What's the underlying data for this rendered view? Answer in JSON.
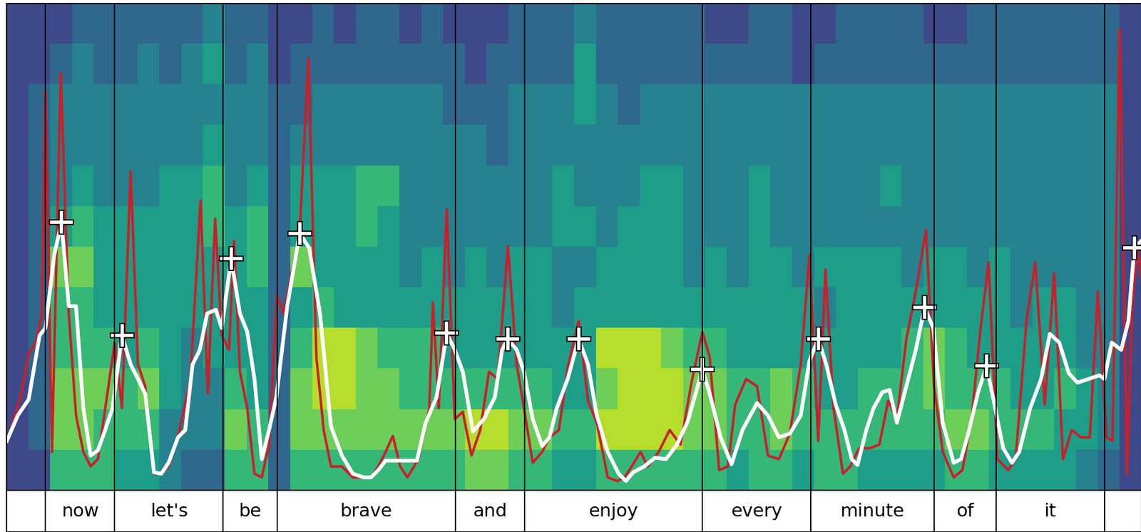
{
  "chart_data": {
    "type": "spectrogram",
    "xlim": [
      0,
      1558
    ],
    "ylim": [
      0,
      668
    ],
    "tick_labels": false,
    "heatmap": {
      "color_range": [
        0,
        9
      ],
      "cells": [
        [
          2,
          2,
          2,
          3,
          3,
          3,
          3,
          3,
          3,
          4,
          3,
          3,
          2,
          2,
          3,
          2,
          3,
          3,
          2,
          3,
          2,
          2,
          2,
          3,
          3,
          3,
          4,
          3,
          3,
          3,
          3,
          3,
          2,
          2,
          3,
          3,
          2,
          2,
          3,
          3,
          3,
          3,
          2,
          2,
          3,
          3,
          3,
          3,
          3,
          3,
          3,
          2
        ],
        [
          2,
          2,
          3,
          4,
          3,
          3,
          4,
          3,
          4,
          5,
          3,
          4,
          2,
          3,
          3,
          3,
          3,
          3,
          3,
          3,
          3,
          2,
          3,
          3,
          3,
          3,
          5,
          3,
          3,
          3,
          3,
          3,
          3,
          3,
          3,
          3,
          2,
          3,
          3,
          3,
          3,
          3,
          3,
          3,
          3,
          3,
          3,
          3,
          3,
          3,
          3,
          2
        ],
        [
          2,
          3,
          4,
          4,
          4,
          4,
          4,
          4,
          4,
          4,
          4,
          4,
          3,
          3,
          4,
          4,
          4,
          4,
          4,
          4,
          3,
          3,
          3,
          4,
          4,
          4,
          5,
          4,
          3,
          4,
          4,
          4,
          4,
          4,
          4,
          4,
          4,
          4,
          4,
          4,
          4,
          4,
          4,
          4,
          4,
          4,
          4,
          4,
          4,
          4,
          4,
          2
        ],
        [
          2,
          3,
          4,
          4,
          4,
          4,
          4,
          4,
          4,
          5,
          4,
          4,
          3,
          4,
          4,
          4,
          4,
          4,
          4,
          4,
          4,
          4,
          3,
          4,
          4,
          4,
          4,
          4,
          4,
          4,
          4,
          4,
          4,
          4,
          4,
          4,
          4,
          4,
          4,
          4,
          4,
          4,
          4,
          4,
          4,
          4,
          4,
          4,
          4,
          4,
          4,
          2
        ],
        [
          2,
          3,
          4,
          5,
          4,
          4,
          4,
          5,
          5,
          6,
          4,
          5,
          3,
          5,
          5,
          5,
          6,
          6,
          4,
          4,
          4,
          4,
          4,
          4,
          4,
          5,
          4,
          4,
          4,
          5,
          5,
          4,
          4,
          4,
          5,
          4,
          4,
          4,
          4,
          4,
          5,
          4,
          4,
          4,
          4,
          4,
          4,
          4,
          4,
          4,
          4,
          2
        ],
        [
          2,
          3,
          5,
          6,
          5,
          5,
          5,
          5,
          5,
          6,
          5,
          6,
          3,
          5,
          5,
          5,
          6,
          5,
          4,
          4,
          4,
          4,
          4,
          4,
          4,
          5,
          5,
          4,
          5,
          5,
          5,
          4,
          4,
          4,
          5,
          4,
          4,
          4,
          4,
          4,
          4,
          4,
          4,
          4,
          4,
          4,
          4,
          4,
          4,
          4,
          4,
          2
        ],
        [
          2,
          3,
          7,
          7,
          5,
          5,
          5,
          5,
          5,
          5,
          5,
          6,
          3,
          7,
          5,
          5,
          5,
          5,
          4,
          5,
          4,
          5,
          4,
          5,
          5,
          4,
          4,
          5,
          5,
          5,
          5,
          4,
          5,
          4,
          5,
          5,
          4,
          5,
          5,
          5,
          5,
          4,
          5,
          5,
          4,
          5,
          4,
          4,
          4,
          4,
          4,
          2
        ],
        [
          2,
          3,
          6,
          6,
          5,
          5,
          5,
          5,
          5,
          5,
          5,
          5,
          3,
          5,
          6,
          5,
          5,
          5,
          5,
          5,
          5,
          5,
          5,
          5,
          5,
          4,
          5,
          5,
          5,
          5,
          5,
          5,
          5,
          5,
          5,
          5,
          5,
          4,
          5,
          5,
          5,
          5,
          5,
          5,
          5,
          5,
          4,
          5,
          5,
          4,
          4,
          2
        ],
        [
          2,
          3,
          6,
          6,
          6,
          5,
          6,
          5,
          4,
          5,
          5,
          5,
          3,
          6,
          8,
          8,
          7,
          6,
          6,
          6,
          5,
          5,
          5,
          5,
          5,
          5,
          5,
          8,
          8,
          8,
          7,
          6,
          6,
          5,
          5,
          5,
          5,
          5,
          5,
          5,
          5,
          6,
          7,
          6,
          5,
          5,
          5,
          5,
          5,
          4,
          4,
          2
        ],
        [
          2,
          3,
          7,
          7,
          7,
          6,
          7,
          5,
          4,
          4,
          6,
          5,
          3,
          7,
          8,
          8,
          7,
          7,
          6,
          6,
          6,
          6,
          6,
          6,
          6,
          5,
          5,
          7,
          8,
          8,
          8,
          7,
          7,
          6,
          6,
          7,
          6,
          5,
          5,
          6,
          6,
          6,
          7,
          6,
          6,
          6,
          5,
          5,
          6,
          5,
          4,
          2
        ],
        [
          2,
          3,
          7,
          7,
          6,
          6,
          6,
          4,
          4,
          4,
          7,
          6,
          3,
          7,
          7,
          7,
          7,
          7,
          7,
          7,
          7,
          8,
          8,
          7,
          7,
          6,
          6,
          8,
          8,
          8,
          8,
          7,
          7,
          6,
          6,
          7,
          6,
          6,
          6,
          6,
          6,
          6,
          6,
          7,
          7,
          6,
          6,
          6,
          5,
          5,
          4,
          2
        ],
        [
          2,
          2,
          6,
          6,
          6,
          5,
          5,
          4,
          3,
          3,
          6,
          6,
          3,
          6,
          6,
          6,
          6,
          6,
          6,
          6,
          6,
          7,
          7,
          6,
          6,
          5,
          5,
          6,
          6,
          6,
          6,
          6,
          6,
          5,
          6,
          6,
          5,
          6,
          6,
          5,
          5,
          5,
          5,
          6,
          6,
          5,
          5,
          5,
          5,
          4,
          3,
          2
        ]
      ]
    },
    "series": [
      {
        "type": "line",
        "color": "#c8202a",
        "line_style": "solid",
        "x": [
          5,
          20,
          30,
          40,
          48,
          53,
          62,
          74,
          85,
          95,
          105,
          115,
          125,
          138,
          148,
          158,
          170,
          180,
          190,
          202,
          212,
          222,
          235,
          252,
          266,
          276,
          286,
          295,
          305,
          312,
          320,
          330,
          340,
          350,
          360,
          371,
          380,
          390,
          402,
          414,
          425,
          435,
          445,
          460,
          475,
          490,
          500,
          510,
          520,
          530,
          540,
          550,
          565,
          580,
          585,
          593,
          604,
          615,
          626,
          638,
          650,
          662,
          674,
          688,
          700,
          710,
          722,
          735,
          745,
          758,
          770,
          785,
          798,
          810,
          825,
          838,
          848,
          858,
          870,
          880,
          895,
          910,
          925,
          940,
          955,
          965,
          978,
          990,
          1000,
          1015,
          1030,
          1045,
          1060,
          1075,
          1090,
          1102,
          1114,
          1124,
          1135,
          1148,
          1158,
          1170,
          1185,
          1198,
          1210,
          1222,
          1235,
          1248,
          1262,
          1273,
          1285,
          1300,
          1312,
          1325,
          1337,
          1348,
          1360,
          1375,
          1385,
          1400,
          1412,
          1425,
          1438,
          1450,
          1462,
          1475,
          1487,
          1498,
          1510,
          1518,
          1528,
          1538,
          1545,
          1552,
          1558
        ],
        "values": [
          83,
          133,
          188,
          203,
          243,
          548,
          53,
          573,
          243,
          103,
          53,
          33,
          43,
          133,
          203,
          113,
          438,
          173,
          143,
          23,
          23,
          33,
          73,
          153,
          398,
          133,
          373,
          213,
          193,
          343,
          163,
          113,
          23,
          18,
          63,
          268,
          243,
          293,
          353,
          593,
          183,
          83,
          33,
          33,
          18,
          18,
          18,
          33,
          53,
          75,
          33,
          18,
          43,
          113,
          258,
          113,
          386,
          98,
          108,
          48,
          83,
          163,
          153,
          335,
          173,
          113,
          38,
          53,
          73,
          83,
          168,
          233,
          123,
          93,
          18,
          13,
          18,
          33,
          53,
          33,
          53,
          83,
          63,
          148,
          218,
          183,
          28,
          33,
          118,
          153,
          143,
          48,
          43,
          78,
          173,
          323,
          68,
          303,
          113,
          23,
          33,
          58,
          58,
          63,
          123,
          98,
          208,
          273,
          358,
          143,
          53,
          18,
          28,
          103,
          223,
          313,
          43,
          28,
          43,
          233,
          313,
          118,
          298,
          43,
          83,
          73,
          73,
          273,
          73,
          68,
          633,
          23,
          253,
          333,
          293
        ]
      },
      {
        "type": "line",
        "color": "#ffffff",
        "line_style": "solid",
        "x": [
          0,
          15,
          30,
          45,
          53,
          65,
          75,
          85,
          95,
          105,
          115,
          125,
          135,
          145,
          158,
          170,
          190,
          202,
          212,
          222,
          235,
          245,
          255,
          265,
          275,
          287,
          295,
          308,
          320,
          330,
          340,
          350,
          360,
          370,
          385,
          402,
          415,
          430,
          445,
          460,
          475,
          490,
          500,
          510,
          520,
          535,
          550,
          563,
          575,
          590,
          604,
          615,
          626,
          640,
          655,
          670,
          680,
          688,
          700,
          710,
          722,
          735,
          745,
          755,
          770,
          785,
          798,
          810,
          825,
          840,
          850,
          860,
          875,
          890,
          905,
          920,
          935,
          955,
          965,
          980,
          995,
          1010,
          1030,
          1045,
          1060,
          1075,
          1090,
          1102,
          1114,
          1125,
          1138,
          1150,
          1160,
          1168,
          1180,
          1190,
          1202,
          1212,
          1222,
          1235,
          1248,
          1260,
          1272,
          1285,
          1300,
          1310,
          1320,
          1333,
          1345,
          1355,
          1368,
          1380,
          1390,
          1405,
          1420,
          1432,
          1445,
          1458,
          1470,
          1485,
          1500,
          1507,
          1517,
          1530,
          1540,
          1548,
          1558
        ],
        "values": [
          68,
          103,
          125,
          213,
          223,
          323,
          368,
          253,
          253,
          113,
          48,
          55,
          83,
          113,
          213,
          173,
          133,
          25,
          23,
          38,
          73,
          83,
          173,
          193,
          243,
          248,
          223,
          318,
          243,
          218,
          153,
          43,
          83,
          128,
          253,
          353,
          333,
          243,
          88,
          48,
          23,
          18,
          18,
          28,
          41,
          41,
          41,
          41,
          93,
          128,
          216,
          193,
          163,
          81,
          98,
          128,
          193,
          208,
          193,
          163,
          98,
          61,
          73,
          113,
          153,
          208,
          173,
          103,
          53,
          23,
          13,
          25,
          33,
          45,
          43,
          63,
          95,
          166,
          133,
          73,
          36,
          83,
          120,
          103,
          73,
          78,
          103,
          178,
          208,
          173,
          118,
          83,
          43,
          35,
          83,
          113,
          135,
          138,
          93,
          143,
          193,
          251,
          223,
          93,
          38,
          43,
          78,
          133,
          171,
          123,
          58,
          38,
          53,
          113,
          153,
          215,
          203,
          161,
          148,
          153,
          158,
          153,
          203,
          193,
          233,
          333,
          343
        ]
      }
    ],
    "peaks": {
      "color": "#ffffff",
      "marker": "+",
      "x": [
        75,
        158,
        308,
        402,
        604,
        688,
        785,
        955,
        1114,
        1260,
        1345,
        1548
      ],
      "values": [
        368,
        213,
        318,
        353,
        216,
        208,
        208,
        166,
        208,
        251,
        171,
        333
      ]
    },
    "segments": {
      "boundaries": [
        0,
        53,
        148,
        297,
        371,
        616,
        711,
        955,
        1104,
        1273,
        1358,
        1507,
        1558
      ],
      "labels": [
        null,
        "now",
        "let's",
        "be",
        "brave",
        "and",
        "enjoy",
        "every",
        "minute",
        "of",
        "it",
        null
      ]
    }
  }
}
